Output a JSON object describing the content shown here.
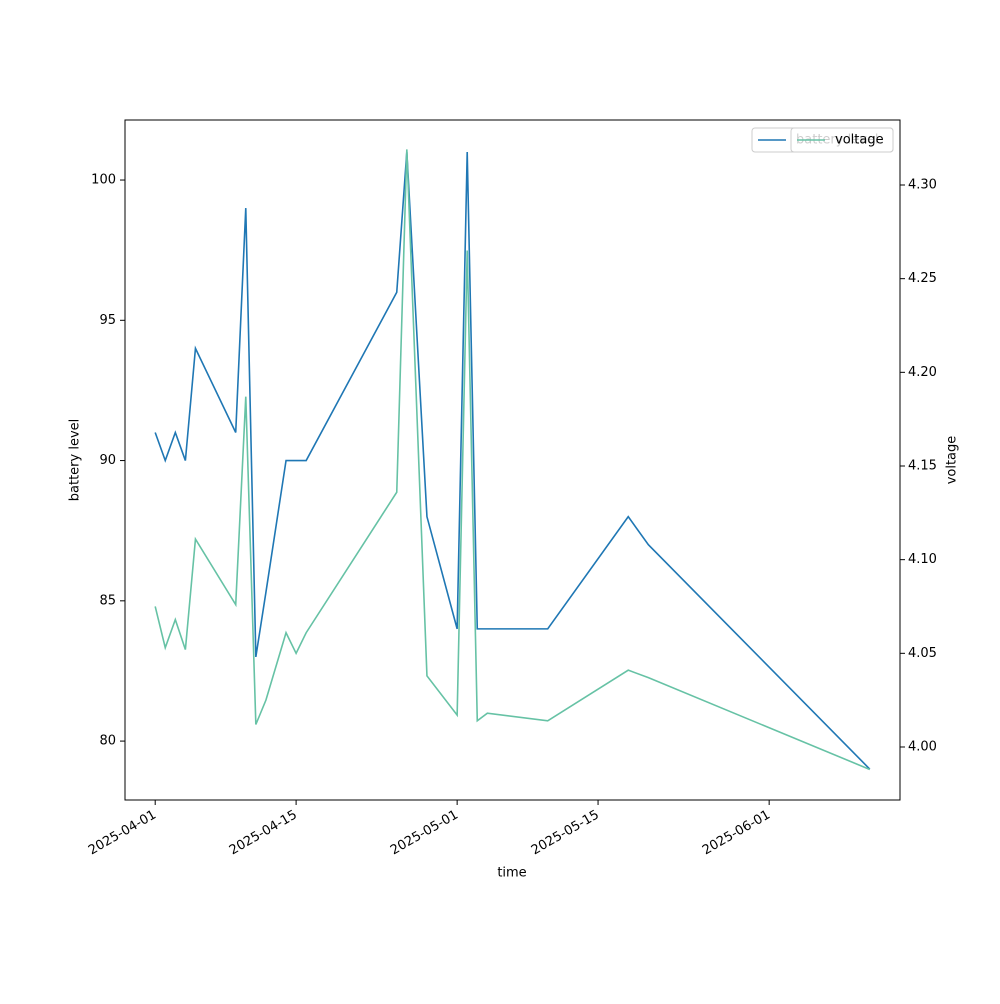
{
  "chart_data": {
    "type": "line",
    "xlabel": "time",
    "ylabel": "battery level",
    "y2label": "voltage",
    "x": [
      "2025-04-01",
      "2025-04-02",
      "2025-04-03",
      "2025-04-04",
      "2025-04-05",
      "2025-04-09",
      "2025-04-10",
      "2025-04-11",
      "2025-04-12",
      "2025-04-14",
      "2025-04-15",
      "2025-04-16",
      "2025-04-25",
      "2025-04-26",
      "2025-04-28",
      "2025-05-01",
      "2025-05-02",
      "2025-05-03",
      "2025-05-04",
      "2025-05-10",
      "2025-05-18",
      "2025-05-20",
      "2025-06-11"
    ],
    "series": [
      {
        "name": "battery level",
        "color": "#1f77b4",
        "values": [
          91,
          90,
          91,
          90,
          94,
          91,
          99,
          83,
          85.3,
          90,
          90,
          90,
          96,
          101,
          88,
          84,
          101,
          84,
          84,
          84,
          88,
          87,
          79
        ]
      },
      {
        "name": "voltage",
        "color": "#66c2a5",
        "axis": "y2",
        "values": [
          4.075,
          4.053,
          4.068,
          4.052,
          4.111,
          4.076,
          4.187,
          4.012,
          4.025,
          4.061,
          4.05,
          4.061,
          4.136,
          4.319,
          4.038,
          4.017,
          4.265,
          4.014,
          4.018,
          4.014,
          4.041,
          4.037,
          3.988
        ]
      }
    ],
    "xlim": [
      "2025-03-29",
      "2025-06-14"
    ],
    "xticks": [
      "2025-04-01",
      "2025-04-15",
      "2025-05-01",
      "2025-05-15",
      "2025-06-01"
    ],
    "ylim": [
      77.9,
      102.14
    ],
    "yticks": [
      80,
      85,
      90,
      95,
      100
    ],
    "y2lim": [
      3.9717,
      4.3347
    ],
    "y2ticks": [
      {
        "value": 4.0,
        "label": "4.00"
      },
      {
        "value": 4.05,
        "label": "4.05"
      },
      {
        "value": 4.1,
        "label": "4.10"
      },
      {
        "value": 4.15,
        "label": "4.15"
      },
      {
        "value": 4.2,
        "label": "4.20"
      },
      {
        "value": 4.25,
        "label": "4.25"
      },
      {
        "value": 4.3,
        "label": "4.30"
      }
    ],
    "legend": "upper right"
  }
}
